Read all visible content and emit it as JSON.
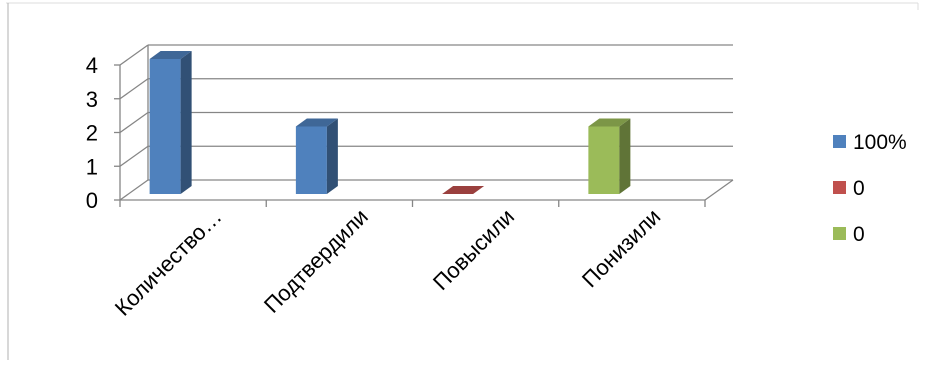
{
  "chart_data": {
    "type": "bar",
    "categories": [
      "Количество…",
      "Подтвердили",
      "Повысили",
      "Понизили"
    ],
    "series": [
      {
        "name": "100%",
        "color": "#4F81BD",
        "values": [
          4,
          2,
          null,
          null
        ]
      },
      {
        "name": "0",
        "color": "#C0504D",
        "values": [
          null,
          null,
          0,
          null
        ]
      },
      {
        "name": "0",
        "color": "#9BBB59",
        "values": [
          null,
          null,
          null,
          2
        ]
      }
    ],
    "y_ticks": [
      "0",
      "1",
      "2",
      "3",
      "4"
    ],
    "ylim": [
      0,
      4
    ],
    "grid": true,
    "legend_position": "right",
    "title": "",
    "xlabel": "",
    "ylabel": ""
  }
}
